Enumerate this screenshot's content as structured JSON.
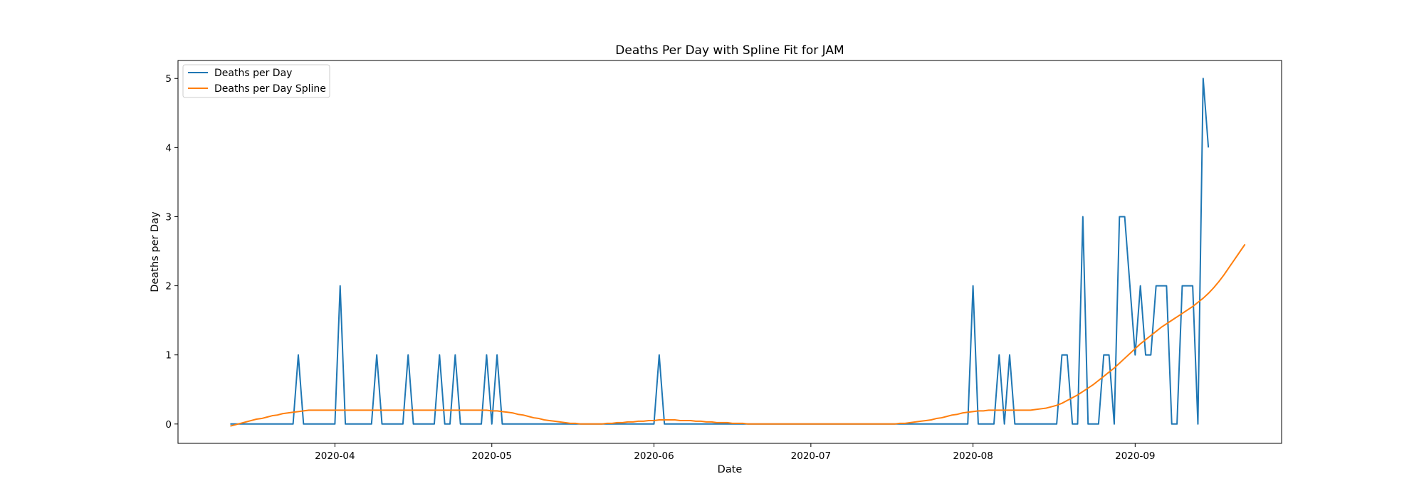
{
  "chart_data": {
    "type": "line",
    "title": "Deaths Per Day with Spline Fit for JAM",
    "xlabel": "Date",
    "ylabel": "Deaths per Day",
    "x_start": "2020-03-12",
    "x_end": "2020-09-19",
    "xlim": [
      "2020-03-02",
      "2020-09-29"
    ],
    "ylim": [
      -0.28,
      5.26
    ],
    "x_ticks": [
      "2020-04-01",
      "2020-05-01",
      "2020-06-01",
      "2020-07-01",
      "2020-08-01",
      "2020-09-01"
    ],
    "x_tick_labels": [
      "2020-04",
      "2020-05",
      "2020-06",
      "2020-07",
      "2020-08",
      "2020-09"
    ],
    "y_ticks": [
      0,
      1,
      2,
      3,
      4,
      5
    ],
    "y_tick_labels": [
      "0",
      "1",
      "2",
      "3",
      "4",
      "5"
    ],
    "grid": false,
    "legend_position": "upper-left",
    "series": [
      {
        "name": "Deaths per Day",
        "color": "#1f77b4",
        "values": [
          0,
          0,
          0,
          0,
          0,
          0,
          0,
          0,
          0,
          0,
          0,
          0,
          0,
          1,
          0,
          0,
          0,
          0,
          0,
          0,
          0,
          2,
          0,
          0,
          0,
          0,
          0,
          0,
          1,
          0,
          0,
          0,
          0,
          0,
          1,
          0,
          0,
          0,
          0,
          0,
          1,
          0,
          0,
          1,
          0,
          0,
          0,
          0,
          0,
          1,
          0,
          1,
          0,
          0,
          0,
          0,
          0,
          0,
          0,
          0,
          0,
          0,
          0,
          0,
          0,
          0,
          0,
          0,
          0,
          0,
          0,
          0,
          0,
          0,
          0,
          0,
          0,
          0,
          0,
          0,
          0,
          0,
          1,
          0,
          0,
          0,
          0,
          0,
          0,
          0,
          0,
          0,
          0,
          0,
          0,
          0,
          0,
          0,
          0,
          0,
          0,
          0,
          0,
          0,
          0,
          0,
          0,
          0,
          0,
          0,
          0,
          0,
          0,
          0,
          0,
          0,
          0,
          0,
          0,
          0,
          0,
          0,
          0,
          0,
          0,
          0,
          0,
          0,
          0,
          0,
          0,
          0,
          0,
          0,
          0,
          0,
          0,
          0,
          0,
          0,
          0,
          0,
          2,
          0,
          0,
          0,
          0,
          1,
          0,
          1,
          0,
          0,
          0,
          0,
          0,
          0,
          0,
          0,
          0,
          1,
          1,
          0,
          0,
          3,
          0,
          0,
          0,
          1,
          1,
          0,
          3,
          3,
          2,
          1,
          2,
          1,
          1,
          2,
          2,
          2,
          0,
          0,
          2,
          2,
          2,
          0,
          5,
          4
        ]
      },
      {
        "name": "Deaths per Day Spline",
        "color": "#ff7f0e",
        "values": [
          -0.03,
          -0.01,
          0.01,
          0.03,
          0.05,
          0.07,
          0.08,
          0.1,
          0.12,
          0.13,
          0.15,
          0.16,
          0.17,
          0.18,
          0.19,
          0.2,
          0.2,
          0.2,
          0.2,
          0.2,
          0.2,
          0.2,
          0.2,
          0.2,
          0.2,
          0.2,
          0.2,
          0.2,
          0.2,
          0.2,
          0.2,
          0.2,
          0.2,
          0.2,
          0.2,
          0.2,
          0.2,
          0.2,
          0.2,
          0.2,
          0.2,
          0.2,
          0.2,
          0.2,
          0.2,
          0.2,
          0.2,
          0.2,
          0.2,
          0.2,
          0.19,
          0.19,
          0.18,
          0.17,
          0.16,
          0.14,
          0.13,
          0.11,
          0.09,
          0.08,
          0.06,
          0.05,
          0.04,
          0.03,
          0.02,
          0.01,
          0.01,
          0,
          0,
          0,
          0,
          0,
          0.01,
          0.01,
          0.02,
          0.02,
          0.03,
          0.03,
          0.04,
          0.04,
          0.05,
          0.05,
          0.06,
          0.06,
          0.06,
          0.06,
          0.05,
          0.05,
          0.05,
          0.04,
          0.04,
          0.03,
          0.03,
          0.02,
          0.02,
          0.02,
          0.01,
          0.01,
          0.01,
          0,
          0,
          0,
          0,
          0,
          0,
          0,
          0,
          0,
          0,
          0,
          0,
          0,
          0,
          0,
          0,
          0,
          0,
          0,
          0,
          0,
          0,
          0,
          0,
          0,
          0,
          0,
          0,
          0,
          0.01,
          0.01,
          0.02,
          0.03,
          0.04,
          0.05,
          0.06,
          0.08,
          0.09,
          0.11,
          0.13,
          0.14,
          0.16,
          0.17,
          0.18,
          0.19,
          0.19,
          0.2,
          0.2,
          0.2,
          0.2,
          0.2,
          0.2,
          0.2,
          0.2,
          0.2,
          0.21,
          0.22,
          0.23,
          0.25,
          0.27,
          0.3,
          0.34,
          0.38,
          0.42,
          0.47,
          0.52,
          0.57,
          0.63,
          0.69,
          0.75,
          0.81,
          0.88,
          0.95,
          1.02,
          1.09,
          1.16,
          1.22,
          1.28,
          1.34,
          1.4,
          1.45,
          1.5,
          1.55,
          1.6,
          1.65,
          1.7,
          1.76,
          1.82,
          1.89,
          1.97,
          2.06,
          2.16,
          2.27,
          2.38,
          2.49,
          2.6
        ]
      }
    ]
  }
}
